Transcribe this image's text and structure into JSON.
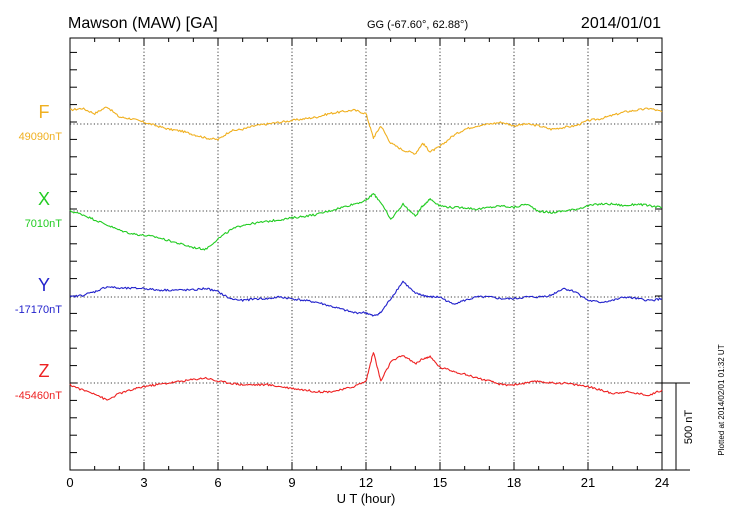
{
  "header": {
    "station": "Mawson (MAW)  [GA]",
    "coords": "GG (-67.60°,  62.88°)",
    "date": "2014/01/01"
  },
  "plotted_note": "Plotted at 2014/02/01 01:32 UT",
  "chart_data": {
    "type": "line",
    "xlabel": "U T (hour)",
    "xlim": [
      0,
      24
    ],
    "xticks": [
      0,
      3,
      6,
      9,
      12,
      15,
      18,
      21,
      24
    ],
    "ylabel": "",
    "grid": true,
    "scale_bar": {
      "label": "500 nT",
      "value_nT": 500
    },
    "series": [
      {
        "name": "F",
        "baseline_label": "49090nT",
        "baseline_nT": 49090,
        "color": "#f0b020",
        "x": [
          0,
          0.5,
          1,
          1.5,
          2,
          2.5,
          3,
          3.5,
          4,
          4.5,
          5,
          5.5,
          6,
          6.5,
          7,
          7.5,
          8,
          8.5,
          9,
          9.5,
          10,
          10.5,
          11,
          11.5,
          12,
          12.3,
          12.6,
          13,
          13.5,
          14,
          14.3,
          14.6,
          15,
          15.5,
          16,
          16.5,
          17,
          17.5,
          18,
          18.5,
          19,
          19.5,
          20,
          20.5,
          21,
          21.5,
          22,
          22.5,
          23,
          23.5,
          24
        ],
        "values": [
          49170,
          49180,
          49150,
          49190,
          49130,
          49120,
          49100,
          49080,
          49060,
          49050,
          49030,
          49010,
          49000,
          49050,
          49060,
          49080,
          49090,
          49100,
          49110,
          49120,
          49130,
          49150,
          49160,
          49170,
          49150,
          49010,
          49080,
          48980,
          48940,
          48920,
          48980,
          48930,
          48960,
          49020,
          49060,
          49080,
          49090,
          49100,
          49080,
          49090,
          49080,
          49060,
          49070,
          49080,
          49110,
          49120,
          49140,
          49160,
          49170,
          49180,
          49160
        ]
      },
      {
        "name": "X",
        "baseline_label": "7010nT",
        "baseline_nT": 7010,
        "color": "#22cc22",
        "x": [
          0,
          0.5,
          1,
          1.5,
          2,
          2.5,
          3,
          3.5,
          4,
          4.5,
          5,
          5.5,
          6,
          6.5,
          7,
          7.5,
          8,
          8.5,
          9,
          9.5,
          10,
          10.5,
          11,
          11.5,
          12,
          12.3,
          12.6,
          13,
          13.5,
          14,
          14.3,
          14.6,
          15,
          15.5,
          16,
          16.5,
          17,
          17.5,
          18,
          18.5,
          19,
          19.5,
          20,
          20.5,
          21,
          21.5,
          22,
          22.5,
          23,
          23.5,
          24
        ],
        "values": [
          7010,
          6990,
          6960,
          6930,
          6900,
          6880,
          6870,
          6860,
          6840,
          6820,
          6800,
          6790,
          6850,
          6900,
          6930,
          6940,
          6950,
          6960,
          6970,
          6980,
          6990,
          7010,
          7030,
          7050,
          7070,
          7110,
          7060,
          6960,
          7050,
          6980,
          7040,
          7080,
          7040,
          7030,
          7030,
          7020,
          7030,
          7040,
          7030,
          7050,
          7010,
          7000,
          7010,
          7020,
          7040,
          7050,
          7050,
          7040,
          7050,
          7040,
          7030
        ]
      },
      {
        "name": "Y",
        "baseline_label": "-17170nT",
        "baseline_nT": -17170,
        "color": "#2222cc",
        "x": [
          0,
          0.5,
          1,
          1.5,
          2,
          2.5,
          3,
          3.5,
          4,
          4.5,
          5,
          5.5,
          6,
          6.5,
          7,
          7.5,
          8,
          8.5,
          9,
          9.5,
          10,
          10.5,
          11,
          11.5,
          12,
          12.3,
          12.6,
          13,
          13.5,
          14,
          14.3,
          14.6,
          15,
          15.5,
          16,
          16.5,
          17,
          17.5,
          18,
          18.5,
          19,
          19.5,
          20,
          20.5,
          21,
          21.5,
          22,
          22.5,
          23,
          23.5,
          24
        ],
        "values": [
          -17170,
          -17160,
          -17140,
          -17110,
          -17120,
          -17120,
          -17120,
          -17130,
          -17130,
          -17130,
          -17130,
          -17120,
          -17140,
          -17180,
          -17190,
          -17180,
          -17180,
          -17170,
          -17180,
          -17190,
          -17200,
          -17220,
          -17240,
          -17260,
          -17260,
          -17280,
          -17260,
          -17180,
          -17080,
          -17150,
          -17160,
          -17170,
          -17170,
          -17210,
          -17190,
          -17170,
          -17170,
          -17180,
          -17180,
          -17170,
          -17170,
          -17160,
          -17120,
          -17140,
          -17190,
          -17200,
          -17190,
          -17170,
          -17180,
          -17190,
          -17180
        ]
      },
      {
        "name": "Z",
        "baseline_label": "-45460nT",
        "baseline_nT": -45460,
        "color": "#ee2222",
        "x": [
          0,
          0.5,
          1,
          1.5,
          2,
          2.5,
          3,
          3.5,
          4,
          4.5,
          5,
          5.5,
          6,
          6.5,
          7,
          7.5,
          8,
          8.5,
          9,
          9.5,
          10,
          10.5,
          11,
          11.5,
          12,
          12.3,
          12.6,
          13,
          13.5,
          14,
          14.3,
          14.6,
          15,
          15.5,
          16,
          16.5,
          17,
          17.5,
          18,
          18.5,
          19,
          19.5,
          20,
          20.5,
          21,
          21.5,
          22,
          22.5,
          23,
          23.5,
          24
        ],
        "values": [
          -45470,
          -45500,
          -45520,
          -45560,
          -45520,
          -45500,
          -45480,
          -45470,
          -45460,
          -45450,
          -45440,
          -45430,
          -45450,
          -45460,
          -45470,
          -45470,
          -45470,
          -45480,
          -45490,
          -45500,
          -45510,
          -45510,
          -45500,
          -45480,
          -45450,
          -45280,
          -45450,
          -45340,
          -45300,
          -45350,
          -45320,
          -45310,
          -45370,
          -45390,
          -45410,
          -45430,
          -45450,
          -45470,
          -45470,
          -45460,
          -45450,
          -45460,
          -45460,
          -45470,
          -45480,
          -45500,
          -45520,
          -45510,
          -45520,
          -45530,
          -45500
        ]
      }
    ]
  }
}
